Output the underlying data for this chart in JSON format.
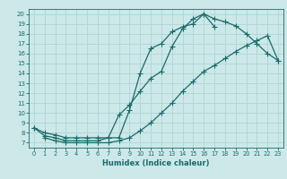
{
  "xlabel": "Humidex (Indice chaleur)",
  "bg_color": "#cce8e8",
  "line_color": "#1a6b6b",
  "grid_color": "#b0d4d4",
  "xlim": [
    -0.5,
    23.5
  ],
  "ylim": [
    6.5,
    20.5
  ],
  "xticks": [
    0,
    1,
    2,
    3,
    4,
    5,
    6,
    7,
    8,
    9,
    10,
    11,
    12,
    13,
    14,
    15,
    16,
    17,
    18,
    19,
    20,
    21,
    22,
    23
  ],
  "yticks": [
    7,
    8,
    9,
    10,
    11,
    12,
    13,
    14,
    15,
    16,
    17,
    18,
    19,
    20
  ],
  "line1_x": [
    0,
    1,
    2,
    3,
    4,
    5,
    6,
    7,
    8,
    9,
    10,
    11,
    12,
    13,
    14,
    15,
    16,
    17,
    18,
    19,
    20,
    21,
    22,
    23
  ],
  "line1_y": [
    8.5,
    8.0,
    7.8,
    7.5,
    7.5,
    7.5,
    7.5,
    7.5,
    7.5,
    10.3,
    14.0,
    16.5,
    17.0,
    18.2,
    18.7,
    19.0,
    20.0,
    19.5,
    19.2,
    18.8,
    18.0,
    17.0,
    16.0,
    15.3
  ],
  "line2_x": [
    0,
    1,
    2,
    3,
    4,
    5,
    6,
    7,
    8,
    9,
    10,
    11,
    12,
    13,
    14,
    15,
    16,
    17
  ],
  "line2_y": [
    8.5,
    7.7,
    7.5,
    7.2,
    7.2,
    7.2,
    7.2,
    7.5,
    9.8,
    10.8,
    12.2,
    13.5,
    14.2,
    16.7,
    18.5,
    19.5,
    20.0,
    18.7
  ],
  "line3_x": [
    1,
    2,
    3,
    4,
    5,
    6,
    7,
    8,
    9,
    10,
    11,
    12,
    13,
    14,
    15,
    16,
    17,
    18,
    19,
    20,
    21,
    22,
    23
  ],
  "line3_y": [
    7.5,
    7.2,
    7.0,
    7.0,
    7.0,
    7.0,
    7.0,
    7.2,
    7.5,
    8.2,
    9.0,
    10.0,
    11.0,
    12.2,
    13.2,
    14.2,
    14.8,
    15.5,
    16.2,
    16.8,
    17.3,
    17.8,
    15.3
  ]
}
